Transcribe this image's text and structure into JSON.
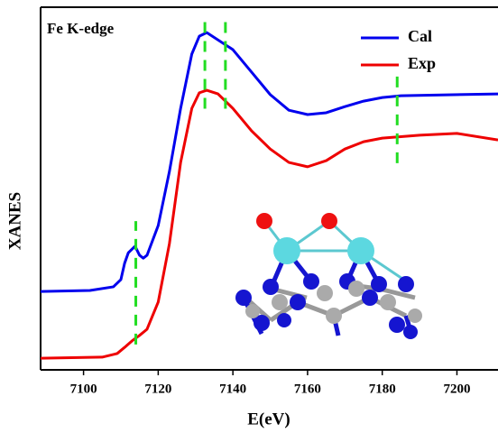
{
  "chart_data": {
    "type": "line",
    "annotation": "Fe K-edge",
    "xlabel": "E(eV)",
    "ylabel": "XANES",
    "xlim": [
      7088.5,
      7211
    ],
    "xticks": [
      7100,
      7120,
      7140,
      7160,
      7180,
      7200
    ],
    "ylim": [
      0,
      1
    ],
    "legend": "top-right",
    "series": [
      {
        "name": "Cal",
        "color": "#0000ee",
        "x": [
          7088.5,
          7101.7,
          7108,
          7110,
          7111,
          7112,
          7113.8,
          7115,
          7116,
          7117,
          7120,
          7123,
          7126,
          7129,
          7131,
          7133,
          7140,
          7145,
          7150,
          7155,
          7160,
          7165,
          7170,
          7175,
          7180,
          7185,
          7211
        ],
        "values": [
          0.216,
          0.219,
          0.229,
          0.249,
          0.294,
          0.323,
          0.341,
          0.316,
          0.308,
          0.316,
          0.398,
          0.547,
          0.721,
          0.871,
          0.92,
          0.93,
          0.883,
          0.821,
          0.759,
          0.716,
          0.704,
          0.709,
          0.726,
          0.741,
          0.751,
          0.756,
          0.761
        ]
      },
      {
        "name": "Exp",
        "color": "#ee0000",
        "x": [
          7088.5,
          7105,
          7109,
          7111,
          7113,
          7115,
          7117,
          7120,
          7123,
          7126,
          7129,
          7131,
          7133,
          7136,
          7140,
          7145,
          7150,
          7155,
          7160,
          7165,
          7170,
          7175,
          7180,
          7190,
          7200,
          7211
        ],
        "values": [
          0.032,
          0.035,
          0.045,
          0.062,
          0.08,
          0.095,
          0.112,
          0.187,
          0.348,
          0.572,
          0.721,
          0.764,
          0.771,
          0.761,
          0.721,
          0.659,
          0.609,
          0.572,
          0.56,
          0.577,
          0.609,
          0.629,
          0.639,
          0.647,
          0.652,
          0.634
        ]
      }
    ],
    "guides": [
      {
        "x": 7114,
        "y": [
          0.07,
          0.41
        ],
        "color": "#22dd22"
      },
      {
        "x": 7132.5,
        "y": [
          0.72,
          0.96
        ],
        "color": "#22dd22"
      },
      {
        "x": 7138,
        "y": [
          0.72,
          0.96
        ],
        "color": "#22dd22"
      },
      {
        "x": 7184,
        "y": [
          0.57,
          0.81
        ],
        "color": "#22dd22"
      }
    ]
  }
}
